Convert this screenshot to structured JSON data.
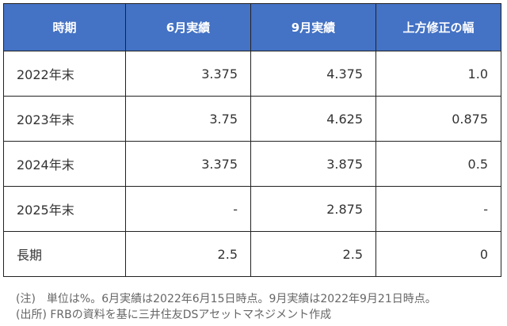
{
  "table": {
    "headers": [
      "時期",
      "6月実績",
      "9月実績",
      "上方修正の幅"
    ],
    "rows": [
      [
        "2022年末",
        "3.375",
        "4.375",
        "1.0"
      ],
      [
        "2023年末",
        "3.75",
        "4.625",
        "0.875"
      ],
      [
        "2024年末",
        "3.375",
        "3.875",
        "0.5"
      ],
      [
        "2025年末",
        "-",
        "2.875",
        "-"
      ],
      [
        "長期",
        "2.5",
        "2.5",
        "0"
      ]
    ]
  },
  "notes": [
    "(注)　単位は%。6月実績は2022年6月15日時点。9月実績は2022年9月21日時点。",
    "(出所) FRBの資料を基に三井住友DSアセットマネジメント作成"
  ],
  "colors": {
    "header_bg": "#4472c4",
    "header_text": "#ffffff"
  }
}
